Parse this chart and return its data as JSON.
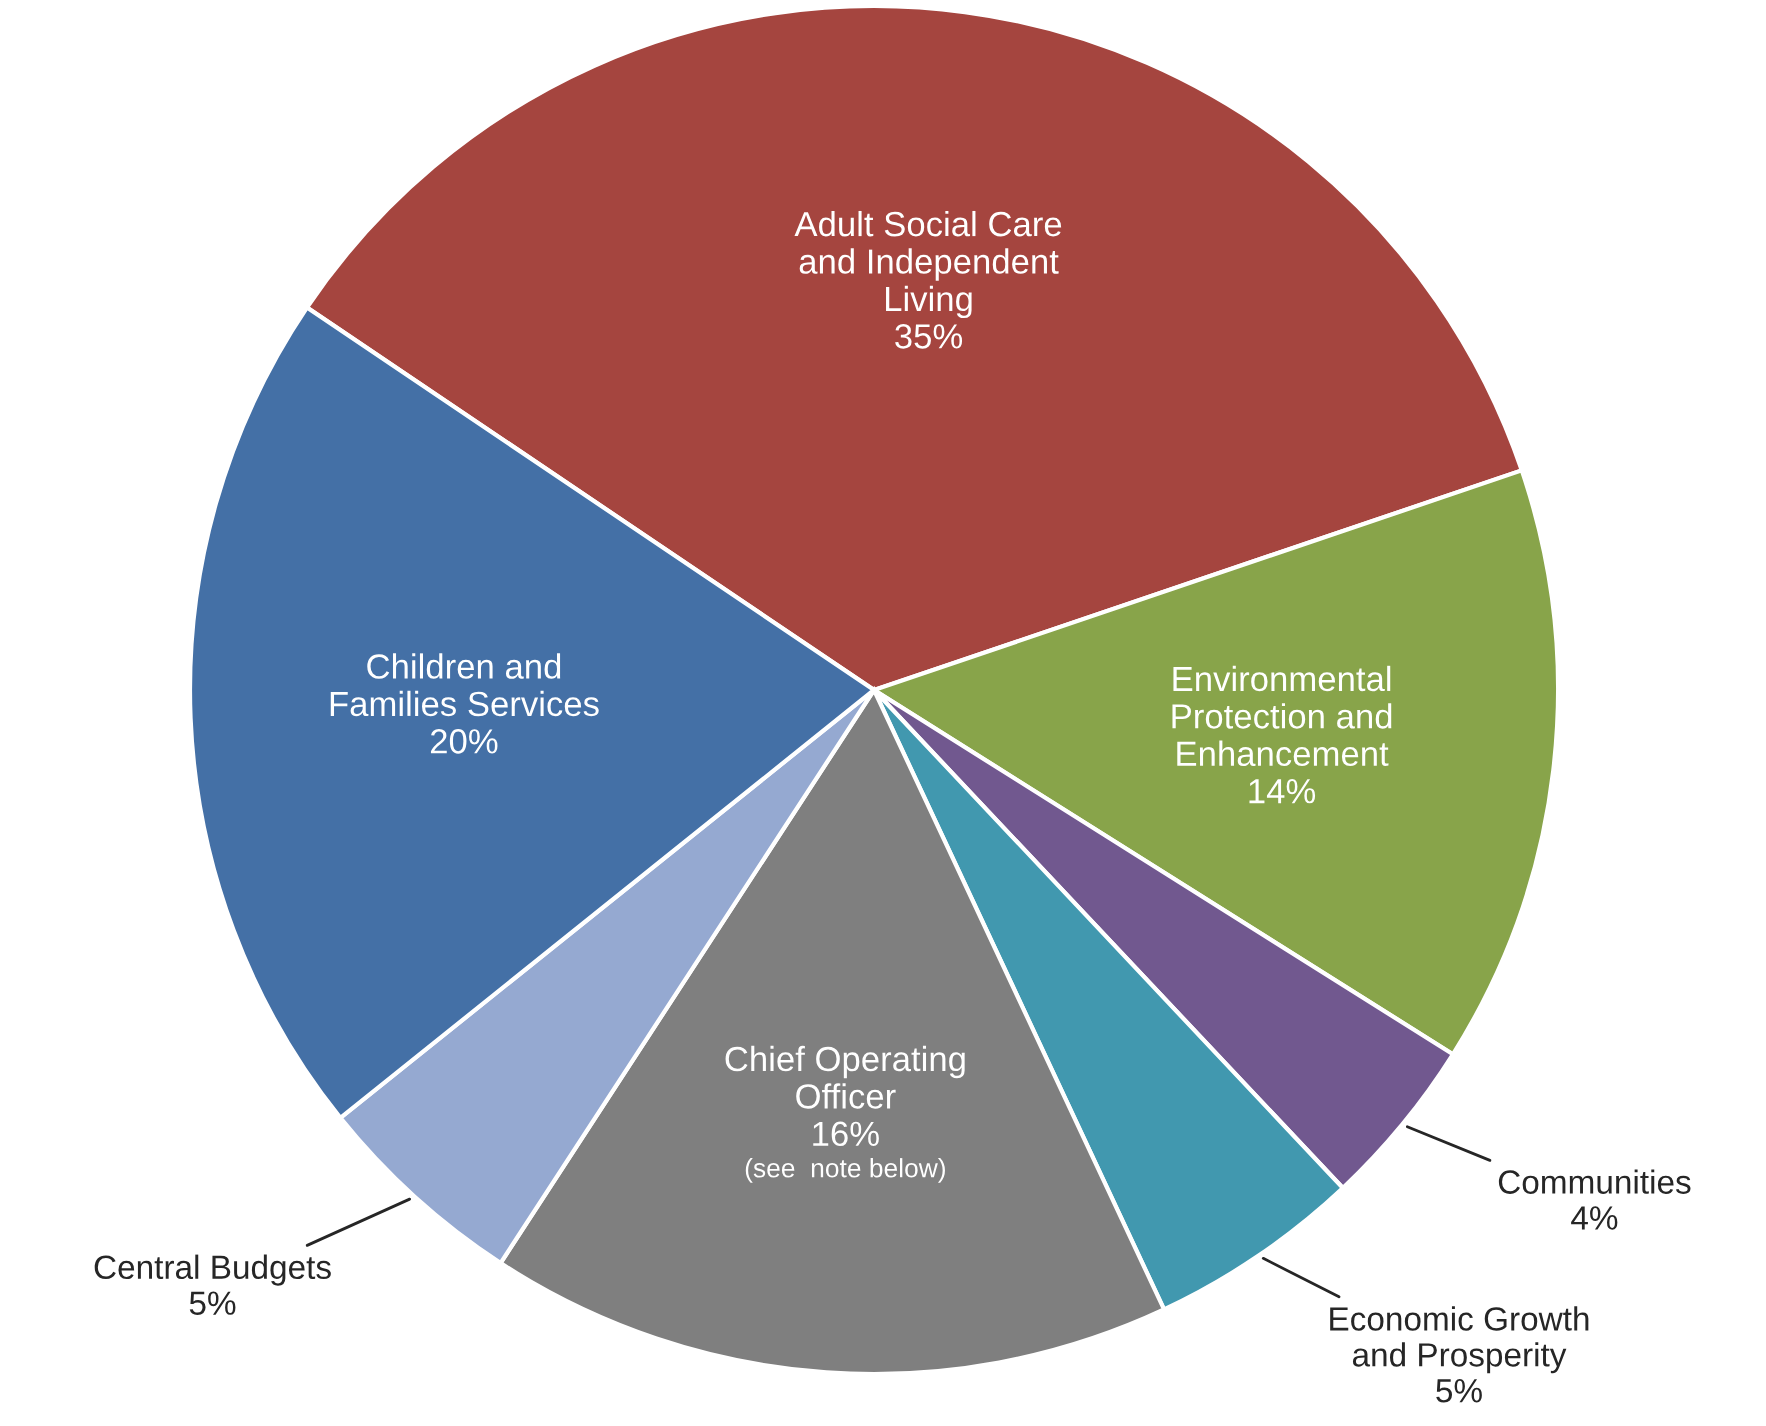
{
  "chart_data": {
    "type": "pie",
    "categories": [
      "Adult Social Care\nand Independent\nLiving",
      "Environmental\nProtection and\nEnhancement",
      "Communities",
      "Economic Growth\nand Prosperity",
      "Chief Operating\nOfficer",
      "Central Budgets",
      "Children and\nFamilies Services"
    ],
    "values": [
      35,
      14,
      4,
      5,
      16,
      5,
      20
    ],
    "value_labels": [
      "35%",
      "14%",
      "4%",
      "5%",
      "16%",
      "5%",
      "20%"
    ],
    "colors": [
      "#a5453f",
      "#88a44a",
      "#71588f",
      "#4198af",
      "#7f7f7f",
      "#95a9d1",
      "#4470a6"
    ],
    "annotations": [
      {
        "text": "(see  note below)",
        "x": "Chief Operating\nOfficer"
      }
    ]
  }
}
